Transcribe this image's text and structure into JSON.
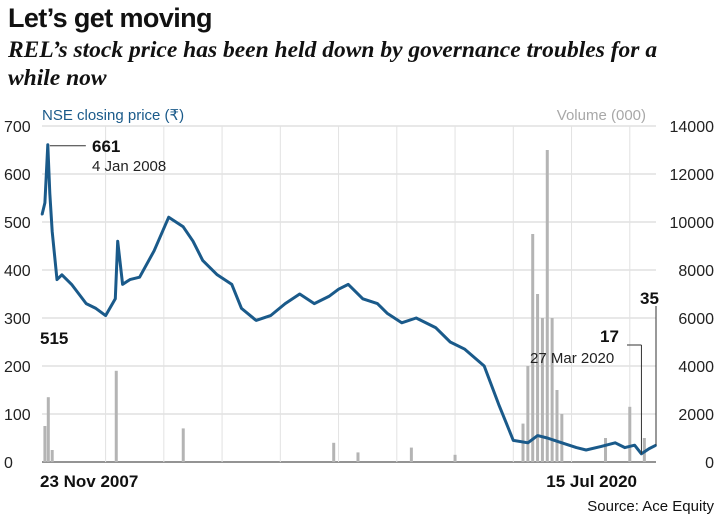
{
  "header": {
    "title": "Let’s get moving",
    "subtitle": "REL’s stock price has been held down by governance troubles for a while now"
  },
  "source": "Source: Ace Equity",
  "chart_data": {
    "type": "line",
    "left_axis_label": "NSE closing price (₹)",
    "right_axis_label": "Volume (000)",
    "left_ylim": [
      0,
      700
    ],
    "left_ticks": [
      "0",
      "100",
      "200",
      "300",
      "400",
      "500",
      "600",
      "700"
    ],
    "right_ylim": [
      0,
      14000
    ],
    "right_ticks": [
      "0",
      "2000",
      "4000",
      "6000",
      "8000",
      "10000",
      "12000",
      "14000"
    ],
    "x_start_label": "23 Nov 2007",
    "x_end_label": "15 Jul 2020",
    "grid": true,
    "price_series": {
      "color": "#1a5a8a",
      "x": [
        2007.89,
        2007.95,
        2008.01,
        2008.05,
        2008.1,
        2008.2,
        2008.3,
        2008.5,
        2008.8,
        2009.0,
        2009.2,
        2009.4,
        2009.45,
        2009.55,
        2009.7,
        2009.9,
        2010.2,
        2010.5,
        2010.8,
        2011.0,
        2011.2,
        2011.5,
        2011.8,
        2012.0,
        2012.3,
        2012.6,
        2012.9,
        2013.2,
        2013.5,
        2013.8,
        2014.0,
        2014.2,
        2014.5,
        2014.8,
        2015.0,
        2015.3,
        2015.6,
        2016.0,
        2016.3,
        2016.6,
        2017.0,
        2017.3,
        2017.6,
        2017.9,
        2018.1,
        2018.3,
        2018.45,
        2018.6,
        2018.9,
        2019.1,
        2019.4,
        2019.7,
        2019.9,
        2020.1,
        2020.24,
        2020.4,
        2020.54
      ],
      "y": [
        515,
        540,
        661,
        560,
        480,
        380,
        390,
        370,
        330,
        320,
        305,
        340,
        460,
        370,
        380,
        385,
        440,
        510,
        490,
        460,
        420,
        390,
        370,
        320,
        295,
        305,
        330,
        350,
        330,
        345,
        360,
        370,
        340,
        330,
        310,
        290,
        300,
        280,
        250,
        235,
        200,
        120,
        45,
        40,
        55,
        50,
        45,
        40,
        30,
        25,
        32,
        40,
        30,
        35,
        17,
        28,
        35
      ]
    },
    "volume_series": {
      "color": "#b4b4b4",
      "x": [
        2007.95,
        2008.02,
        2008.1,
        2009.42,
        2010.8,
        2013.9,
        2014.4,
        2015.5,
        2016.4,
        2017.8,
        2017.9,
        2018.0,
        2018.1,
        2018.2,
        2018.3,
        2018.4,
        2018.5,
        2018.6,
        2019.5,
        2020.0,
        2020.3
      ],
      "y": [
        1500,
        2700,
        500,
        3800,
        1400,
        800,
        400,
        600,
        300,
        1600,
        4000,
        9500,
        7000,
        6000,
        13000,
        6000,
        3000,
        2000,
        1000,
        2300,
        1000
      ]
    },
    "annotations": [
      {
        "value": "661",
        "label": "4 Jan 2008"
      },
      {
        "value": "515"
      },
      {
        "value": "17",
        "label": "27 Mar 2020"
      },
      {
        "value": "35"
      }
    ]
  }
}
